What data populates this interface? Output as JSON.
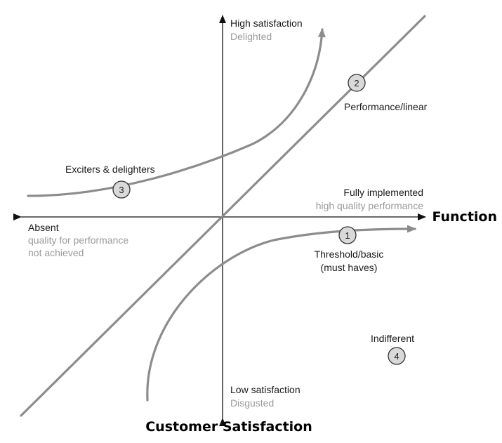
{
  "axes": {
    "y_top_label": "High satisfaction",
    "y_top_sub": "Delighted",
    "y_bottom_label": "Low satisfaction",
    "y_bottom_sub": "Disgusted",
    "x_right_label": "Fully implemented",
    "x_right_sub": "high quality performance",
    "x_left_label": "Absent",
    "x_left_sub_1": "quality for performance",
    "x_left_sub_2": "not achieved",
    "x_title": "Function",
    "y_title": "Customer Satisfaction"
  },
  "curves": {
    "performance": {
      "number": "2",
      "label": "Performance/linear"
    },
    "exciters": {
      "number": "3",
      "label": "Exciters & delighters"
    },
    "threshold": {
      "number": "1",
      "label_1": "Threshold/basic",
      "label_2": "(must haves)"
    },
    "indifferent": {
      "number": "4",
      "label": "Indifferent"
    }
  },
  "colors": {
    "curve": "#8c8c8c",
    "badge_fill": "#d9d9d9",
    "sub_text": "#9a9a9a"
  }
}
